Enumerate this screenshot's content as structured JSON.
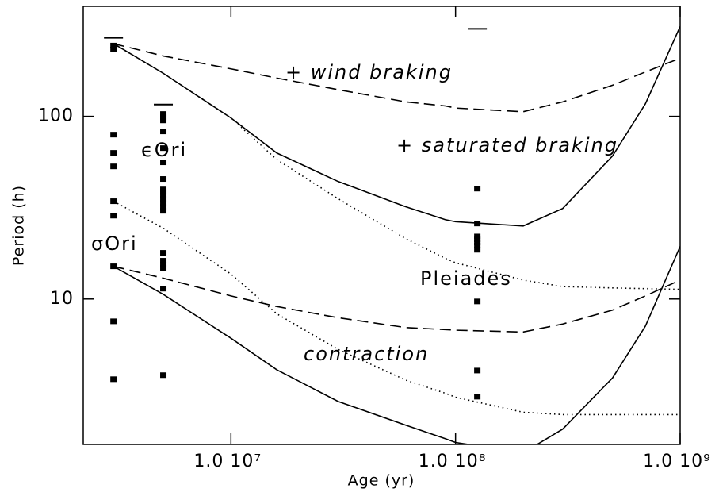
{
  "chart_data": {
    "type": "line",
    "xlabel": "Age (yr)",
    "ylabel": "Period (h)",
    "xlog": true,
    "ylog": true,
    "xlim": [
      2200000.0,
      1000000000.0
    ],
    "ylim": [
      1.6,
      400
    ],
    "xticks": [
      {
        "value": 10000000.0,
        "label": "1.0 10⁷"
      },
      {
        "value": 100000000.0,
        "label": "1.0 10⁸"
      },
      {
        "value": 1000000000.0,
        "label": "1.0 10⁹"
      }
    ],
    "yticks": [
      10,
      100
    ],
    "x": [
      3000000.0,
      5000000.0,
      10000000.0,
      16000000.0,
      30000000.0,
      60000000.0,
      90000000.0,
      100000000.0,
      200000000.0,
      300000000.0,
      500000000.0,
      700000000.0,
      1000000000.0
    ],
    "series": [
      {
        "color": "#000000",
        "style": "solid",
        "values": [
          250,
          172,
          98,
          63,
          44,
          32,
          27.2,
          26.5,
          25.1,
          31.3,
          60.7,
          117,
          310
        ]
      },
      {
        "color": "#000000",
        "style": "dashed",
        "values": [
          250,
          214,
          182,
          162,
          140,
          120,
          114,
          111,
          106,
          120,
          148,
          175,
          208
        ]
      },
      {
        "color": "#000000",
        "style": "dotted",
        "values": [
          250,
          172,
          98,
          58,
          35.4,
          21.4,
          16.7,
          15.8,
          12.7,
          11.7,
          11.5,
          11.4,
          11.3
        ]
      },
      {
        "color": "#000000",
        "style": "solid",
        "values": [
          15.1,
          10.6,
          6.1,
          4.1,
          2.75,
          2.04,
          1.72,
          1.64,
          1.44,
          1.94,
          3.7,
          7.1,
          19.4
        ]
      },
      {
        "color": "#000000",
        "style": "dashed",
        "values": [
          15.1,
          13,
          10.4,
          9.1,
          7.9,
          6.98,
          6.8,
          6.75,
          6.6,
          7.3,
          8.7,
          10.4,
          12.7
        ]
      },
      {
        "color": "#000000",
        "style": "dotted",
        "values": [
          34.3,
          24.4,
          13.7,
          8.3,
          5.3,
          3.6,
          3.05,
          2.9,
          2.4,
          2.33,
          2.33,
          2.33,
          2.33
        ]
      }
    ],
    "scatter": [
      {
        "color": "#000000",
        "x": [
          3000000.0,
          3000000.0,
          3000000.0,
          3000000.0,
          3000000.0,
          3000000.0,
          3000000.0,
          3000000.0,
          3000000.0,
          3000000.0
        ],
        "values": [
          244,
          232,
          79.4,
          63.1,
          53.2,
          34.3,
          28.6,
          15.1,
          7.55,
          3.64
        ]
      },
      {
        "color": "#000000",
        "x": [
          5000000.0,
          5000000.0,
          5000000.0,
          5000000.0,
          5000000.0,
          5000000.0,
          5000000.0,
          5000000.0,
          5000000.0,
          5000000.0,
          5000000.0,
          5000000.0,
          5000000.0,
          5000000.0,
          5000000.0,
          5000000.0,
          5000000.0,
          5000000.0,
          5000000.0,
          5000000.0
        ],
        "values": [
          103,
          99,
          95,
          82.7,
          67,
          56,
          45.4,
          39.8,
          38.6,
          37.1,
          35.3,
          33.6,
          31.9,
          30.4,
          17.9,
          16.2,
          15.4,
          14.8,
          11.4,
          3.83
        ]
      },
      {
        "color": "#000000",
        "x": [
          125000000.0,
          125000000.0,
          125000000.0,
          125000000.0,
          125000000.0,
          125000000.0,
          125000000.0,
          125000000.0,
          125000000.0,
          125000000.0
        ],
        "values": [
          40.2,
          25.9,
          22.0,
          21.2,
          20.4,
          19.6,
          18.6,
          9.7,
          4.06,
          2.92
        ]
      }
    ],
    "limits": {
      "color": "#000000",
      "x": [
        3000000.0,
        5000000.0,
        125000000.0
      ],
      "values": [
        269,
        116,
        301
      ]
    },
    "annotations": [
      {
        "text": "+ wind braking",
        "italic": true
      },
      {
        "text": "+ saturated braking",
        "italic": true
      },
      {
        "text": "ϵOri",
        "italic": false
      },
      {
        "text": "σOri",
        "italic": false
      },
      {
        "text": "Pleiades",
        "italic": false
      },
      {
        "text": "contraction",
        "italic": true
      }
    ]
  }
}
